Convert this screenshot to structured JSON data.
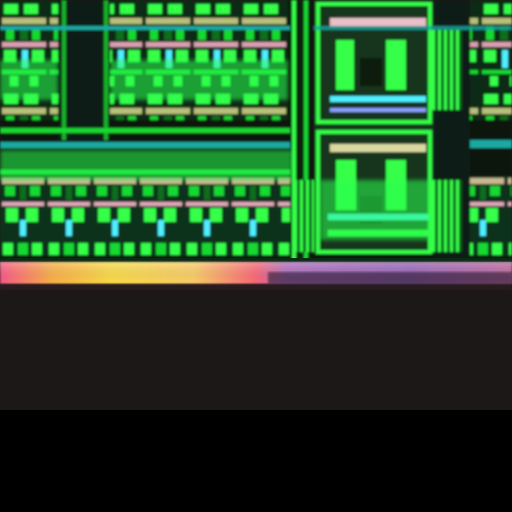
{
  "image": {
    "kind": "photomicrograph of integrated circuit layout",
    "colors": {
      "background": "#000000",
      "substrate": "#1a1616",
      "chip_dark": "#0d1710",
      "green_bright": "#35ff4a",
      "green_mid": "#14d832",
      "green_dark": "#0a6e1c",
      "teal_line": "#1aa8a0",
      "cyan_highlight": "#4ff0ff",
      "pink_band": "#ff7aa8",
      "yellow_band": "#ffe04a",
      "purple_band": "#8a5ab0"
    }
  }
}
